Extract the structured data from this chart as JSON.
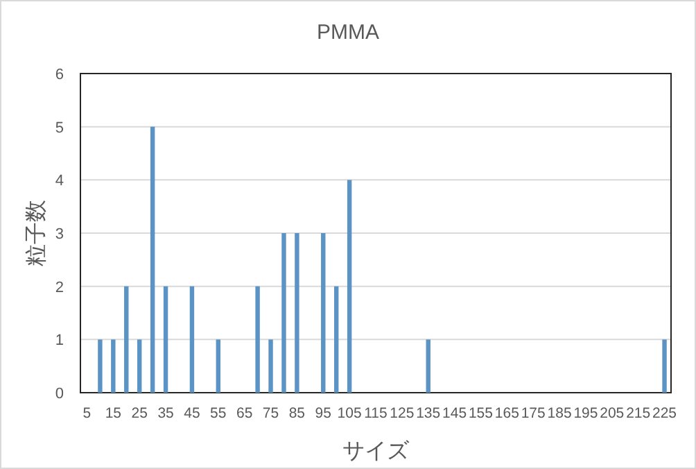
{
  "chart_data": {
    "type": "bar",
    "title": "PMMA",
    "xlabel": "サイズ",
    "ylabel": "粒子数",
    "categories": [
      "5",
      null,
      "15",
      null,
      "25",
      null,
      "35",
      null,
      "45",
      null,
      "55",
      null,
      "65",
      null,
      "75",
      null,
      "85",
      null,
      "95",
      null,
      "105",
      null,
      "115",
      null,
      "125",
      null,
      "135",
      null,
      "145",
      null,
      "155",
      null,
      "165",
      null,
      "175",
      null,
      "185",
      null,
      "195",
      null,
      "205",
      null,
      "215",
      null,
      "225"
    ],
    "values": [
      0,
      1,
      1,
      2,
      1,
      5,
      2,
      0,
      2,
      0,
      1,
      0,
      0,
      2,
      1,
      3,
      3,
      0,
      3,
      2,
      4,
      0,
      0,
      0,
      0,
      0,
      1,
      0,
      0,
      0,
      0,
      0,
      0,
      0,
      0,
      0,
      0,
      0,
      0,
      0,
      0,
      0,
      0,
      0,
      1
    ],
    "color": "#5b93c4",
    "ylim": [
      0,
      6
    ],
    "yticks": [
      0,
      1,
      2,
      3,
      4,
      5,
      6
    ],
    "grid": "y"
  }
}
